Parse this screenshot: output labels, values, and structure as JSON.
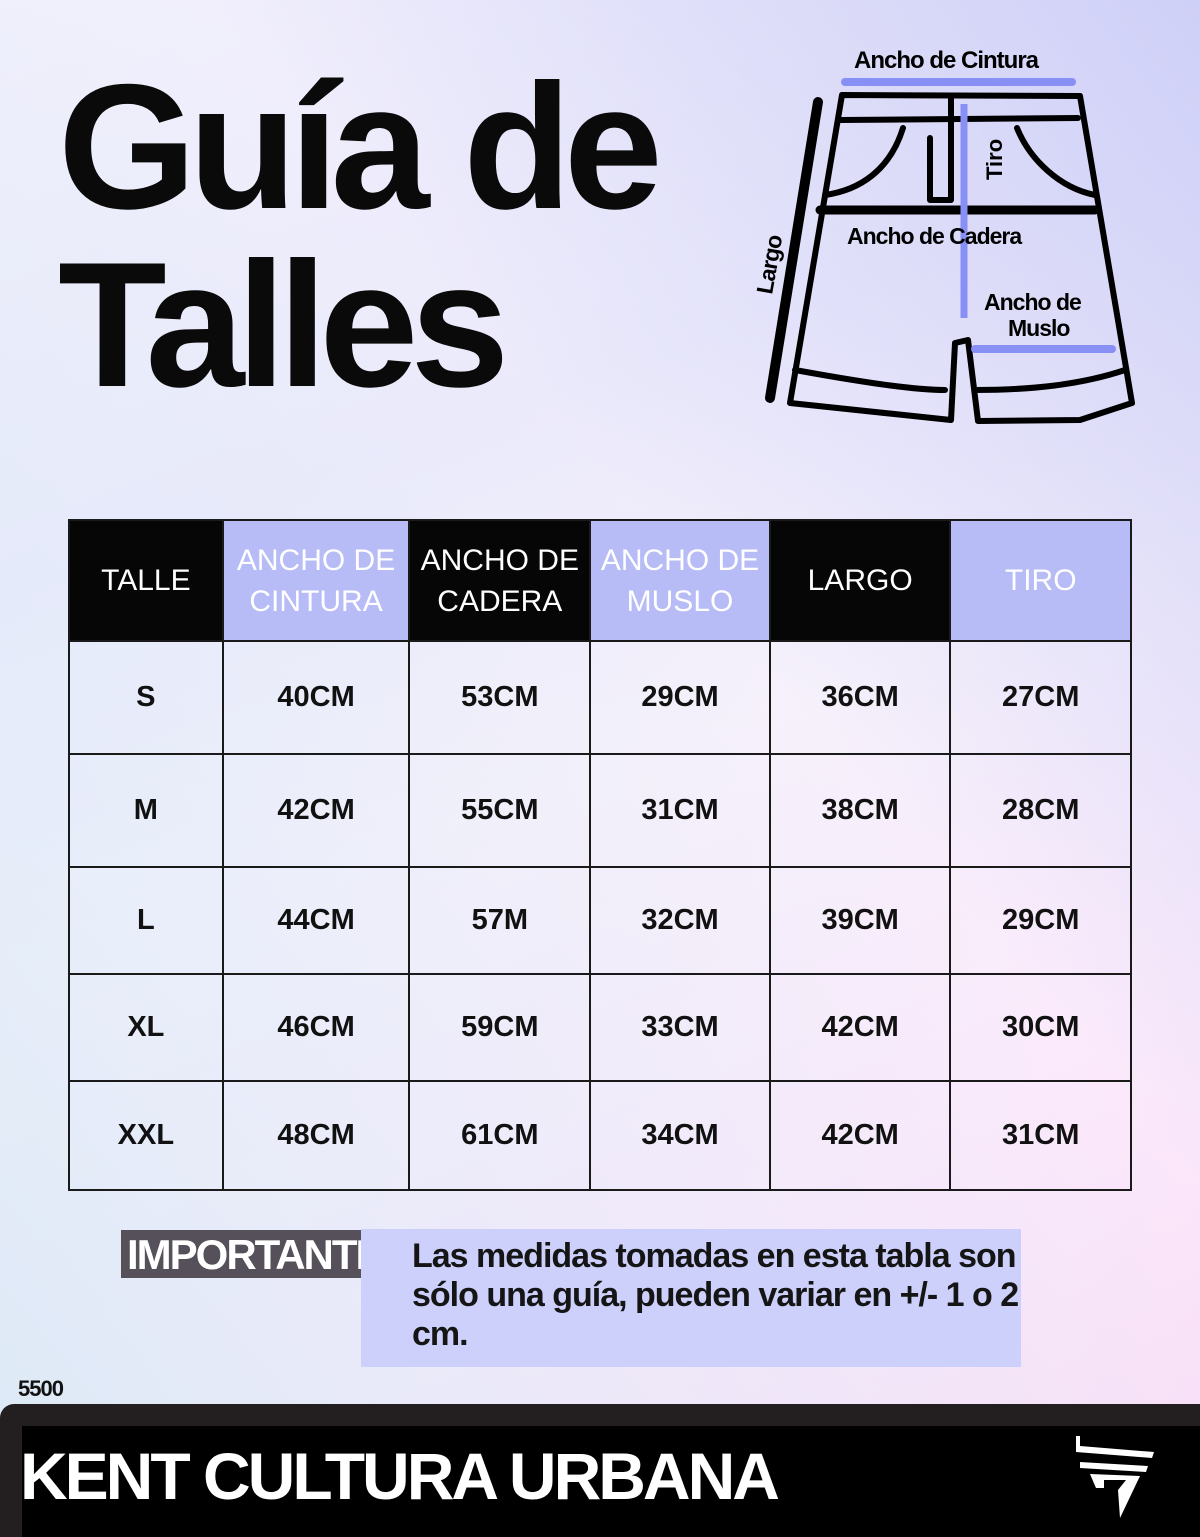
{
  "title": {
    "line1": "Guía de",
    "line2": "Talles"
  },
  "diagram": {
    "waist": "Ancho de Cintura",
    "rise": "Tiro",
    "hip": "Ancho de Cadera",
    "length": "Largo",
    "thigh_line1": "Ancho de",
    "thigh_line2": "Muslo",
    "accent": "#8890f6"
  },
  "table": {
    "headers": [
      {
        "l1": "TALLE",
        "l2": ""
      },
      {
        "l1": "ANCHO DE",
        "l2": "CINTURA"
      },
      {
        "l1": "ANCHO DE",
        "l2": "CADERA"
      },
      {
        "l1": "ANCHO DE",
        "l2": "MUSLO"
      },
      {
        "l1": "LARGO",
        "l2": ""
      },
      {
        "l1": "TIRO",
        "l2": ""
      }
    ],
    "rows": [
      [
        "S",
        "40CM",
        "53CM",
        "29CM",
        "36CM",
        "27CM"
      ],
      [
        "M",
        "42CM",
        "55CM",
        "31CM",
        "38CM",
        "28CM"
      ],
      [
        "L",
        "44CM",
        "57M",
        "32CM",
        "39CM",
        "29CM"
      ],
      [
        "XL",
        "46CM",
        "59CM",
        "33CM",
        "42CM",
        "30CM"
      ],
      [
        "XXL",
        "48CM",
        "61CM",
        "34CM",
        "42CM",
        "31CM"
      ]
    ]
  },
  "note": {
    "label": "IMPORTANTE:",
    "text": "Las medidas tomadas en esta tabla son sólo una guía, pueden variar en +/- 1 o 2 cm."
  },
  "price": "5500",
  "footer": {
    "brand": "KENT CULTURA URBANA"
  }
}
